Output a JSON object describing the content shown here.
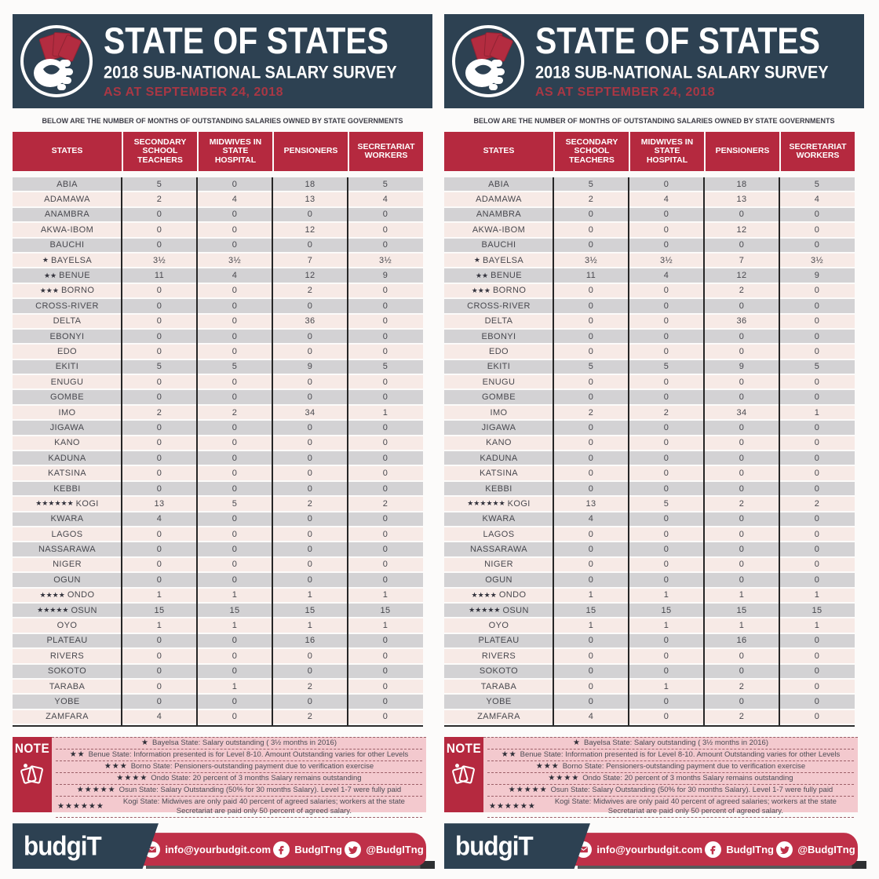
{
  "panel": {
    "header": {
      "title": "STATE OF STATES",
      "subtitle": "2018 SUB-NATIONAL SALARY SURVEY",
      "date_line": "AS AT SEPTEMBER 24, 2018",
      "logo_icon": "fist-holding-cards-icon"
    },
    "intro_line": "BELOW ARE THE NUMBER OF MONTHS OF OUTSTANDING SALARIES OWNED BY STATE GOVERNMENTS",
    "table": {
      "columns": [
        "STATES",
        "SECONDARY SCHOOL TEACHERS",
        "MIDWIVES IN STATE HOSPITAL",
        "PENSIONERS",
        "SECRETARIAT WORKERS"
      ],
      "rows": [
        {
          "stars": 0,
          "state": "ABIA",
          "values": [
            "5",
            "0",
            "18",
            "5"
          ]
        },
        {
          "stars": 0,
          "state": "ADAMAWA",
          "values": [
            "2",
            "4",
            "13",
            "4"
          ]
        },
        {
          "stars": 0,
          "state": "ANAMBRA",
          "values": [
            "0",
            "0",
            "0",
            "0"
          ]
        },
        {
          "stars": 0,
          "state": "AKWA-IBOM",
          "values": [
            "0",
            "0",
            "12",
            "0"
          ]
        },
        {
          "stars": 0,
          "state": "BAUCHI",
          "values": [
            "0",
            "0",
            "0",
            "0"
          ]
        },
        {
          "stars": 1,
          "state": "BAYELSA",
          "values": [
            "3½",
            "3½",
            "7",
            "3½"
          ]
        },
        {
          "stars": 2,
          "state": "BENUE",
          "values": [
            "11",
            "4",
            "12",
            "9"
          ]
        },
        {
          "stars": 3,
          "state": "BORNO",
          "values": [
            "0",
            "0",
            "2",
            "0"
          ]
        },
        {
          "stars": 0,
          "state": "CROSS-RIVER",
          "values": [
            "0",
            "0",
            "0",
            "0"
          ]
        },
        {
          "stars": 0,
          "state": "DELTA",
          "values": [
            "0",
            "0",
            "36",
            "0"
          ]
        },
        {
          "stars": 0,
          "state": "EBONYI",
          "values": [
            "0",
            "0",
            "0",
            "0"
          ]
        },
        {
          "stars": 0,
          "state": "EDO",
          "values": [
            "0",
            "0",
            "0",
            "0"
          ]
        },
        {
          "stars": 0,
          "state": "EKITI",
          "values": [
            "5",
            "5",
            "9",
            "5"
          ]
        },
        {
          "stars": 0,
          "state": "ENUGU",
          "values": [
            "0",
            "0",
            "0",
            "0"
          ]
        },
        {
          "stars": 0,
          "state": "GOMBE",
          "values": [
            "0",
            "0",
            "0",
            "0"
          ]
        },
        {
          "stars": 0,
          "state": "IMO",
          "values": [
            "2",
            "2",
            "34",
            "1"
          ]
        },
        {
          "stars": 0,
          "state": "JIGAWA",
          "values": [
            "0",
            "0",
            "0",
            "0"
          ]
        },
        {
          "stars": 0,
          "state": "KANO",
          "values": [
            "0",
            "0",
            "0",
            "0"
          ]
        },
        {
          "stars": 0,
          "state": "KADUNA",
          "values": [
            "0",
            "0",
            "0",
            "0"
          ]
        },
        {
          "stars": 0,
          "state": "KATSINA",
          "values": [
            "0",
            "0",
            "0",
            "0"
          ]
        },
        {
          "stars": 0,
          "state": "KEBBI",
          "values": [
            "0",
            "0",
            "0",
            "0"
          ]
        },
        {
          "stars": 6,
          "state": "KOGI",
          "values": [
            "13",
            "5",
            "2",
            "2"
          ]
        },
        {
          "stars": 0,
          "state": "KWARA",
          "values": [
            "4",
            "0",
            "0",
            "0"
          ]
        },
        {
          "stars": 0,
          "state": "LAGOS",
          "values": [
            "0",
            "0",
            "0",
            "0"
          ]
        },
        {
          "stars": 0,
          "state": "NASSARAWA",
          "values": [
            "0",
            "0",
            "0",
            "0"
          ]
        },
        {
          "stars": 0,
          "state": "NIGER",
          "values": [
            "0",
            "0",
            "0",
            "0"
          ]
        },
        {
          "stars": 0,
          "state": "OGUN",
          "values": [
            "0",
            "0",
            "0",
            "0"
          ]
        },
        {
          "stars": 4,
          "state": "ONDO",
          "values": [
            "1",
            "1",
            "1",
            "1"
          ]
        },
        {
          "stars": 5,
          "state": "OSUN",
          "values": [
            "15",
            "15",
            "15",
            "15"
          ]
        },
        {
          "stars": 0,
          "state": "OYO",
          "values": [
            "1",
            "1",
            "1",
            "1"
          ]
        },
        {
          "stars": 0,
          "state": "PLATEAU",
          "values": [
            "0",
            "0",
            "16",
            "0"
          ]
        },
        {
          "stars": 0,
          "state": "RIVERS",
          "values": [
            "0",
            "0",
            "0",
            "0"
          ]
        },
        {
          "stars": 0,
          "state": "SOKOTO",
          "values": [
            "0",
            "0",
            "0",
            "0"
          ]
        },
        {
          "stars": 0,
          "state": "TARABA",
          "values": [
            "0",
            "1",
            "2",
            "0"
          ]
        },
        {
          "stars": 0,
          "state": "YOBE",
          "values": [
            "0",
            "0",
            "0",
            "0"
          ]
        },
        {
          "stars": 0,
          "state": "ZAMFARA",
          "values": [
            "4",
            "0",
            "2",
            "0"
          ]
        }
      ]
    },
    "note": {
      "label": "NOTE",
      "icon": "sticky-notes-icon",
      "items": [
        {
          "stars": 1,
          "text": "Bayelsa State: Salary outstanding ( 3½ months in 2016)"
        },
        {
          "stars": 2,
          "text": "Benue State: Information presented is for Level 8-10. Amount Outstanding varies for other Levels"
        },
        {
          "stars": 3,
          "text": "Borno State: Pensioners-outstanding payment due to verification exercise"
        },
        {
          "stars": 4,
          "text": "Ondo State: 20 percent of 3 months Salary remains outstanding"
        },
        {
          "stars": 5,
          "text": "Osun State: Salary Outstanding (50%  for 30 months Salary). Level 1-7 were fully paid"
        },
        {
          "stars": 6,
          "text": "Kogi State: Midwives are only paid 40 percent of agreed salaries; workers at the state Secretariat are paid only 50 percent of agreed salary."
        }
      ]
    },
    "footer": {
      "brand": "budgiT",
      "contacts": [
        {
          "icon": "email-icon",
          "text": "info@yourbudgit.com"
        },
        {
          "icon": "facebook-icon",
          "text": "BudgITng"
        },
        {
          "icon": "twitter-icon",
          "text": "@BudgITng"
        }
      ]
    },
    "colors": {
      "navy": "#2d4152",
      "crimson": "#b5293f",
      "footer_red": "#bf3048",
      "date_red": "#a93744",
      "row_gray": "#d3d2d4",
      "row_pink": "#f7eae6",
      "note_pink": "#f3c9ce"
    }
  }
}
